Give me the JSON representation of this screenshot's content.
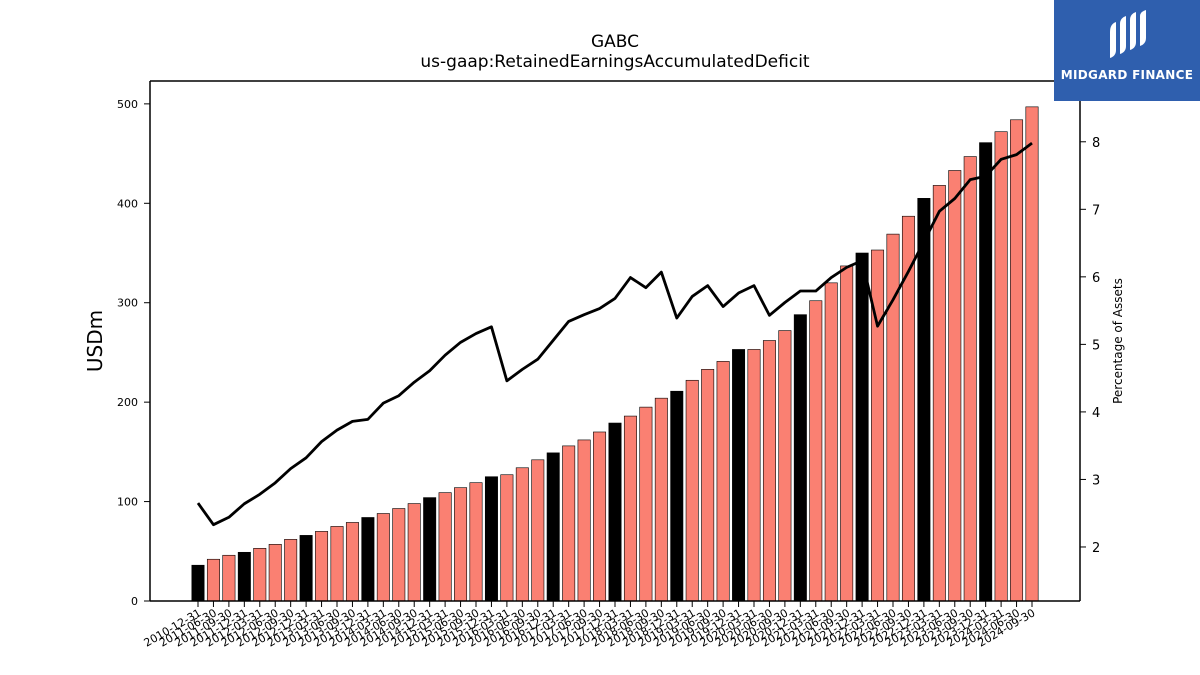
{
  "header": {
    "title": "GABC",
    "subtitle": "us-gaap:RetainedEarningsAccumulatedDeficit"
  },
  "logo": {
    "text": "MIDGARD FINANCE",
    "bg_color": "#2f5fae"
  },
  "chart_data": {
    "type": "bar",
    "title": "GABC",
    "subtitle": "us-gaap:RetainedEarningsAccumulatedDeficit",
    "ylabel": "USDm",
    "y2label": "Percentage of Assets",
    "ylim": [
      0,
      523
    ],
    "y2lim": [
      1.2,
      8.9
    ],
    "yticks": [
      0,
      100,
      200,
      300,
      400,
      500
    ],
    "y2ticks": [
      2,
      3,
      4,
      5,
      6,
      7,
      8
    ],
    "grid": false,
    "colors": {
      "annual": "#000000",
      "quarter": "#fa8072",
      "line": "#000000"
    },
    "categories": [
      "2010-12-31",
      "2011-06-30",
      "2011-09-30",
      "2011-12-31",
      "2012-03-31",
      "2012-06-30",
      "2012-09-30",
      "2012-12-31",
      "2013-03-31",
      "2013-06-30",
      "2013-09-30",
      "2013-12-31",
      "2014-03-31",
      "2014-06-30",
      "2014-09-30",
      "2014-12-31",
      "2015-03-31",
      "2015-06-30",
      "2015-09-30",
      "2015-12-31",
      "2016-03-31",
      "2016-06-30",
      "2016-09-30",
      "2016-12-31",
      "2017-03-31",
      "2017-06-30",
      "2017-09-30",
      "2017-12-31",
      "2018-03-31",
      "2018-06-30",
      "2018-09-30",
      "2018-12-31",
      "2019-03-31",
      "2019-06-30",
      "2019-09-30",
      "2019-12-31",
      "2020-03-31",
      "2020-06-30",
      "2020-09-30",
      "2020-12-31",
      "2021-03-31",
      "2021-06-30",
      "2021-09-30",
      "2021-12-31",
      "2022-03-31",
      "2022-06-30",
      "2022-09-30",
      "2022-12-31",
      "2023-03-31",
      "2023-06-30",
      "2023-09-30",
      "2023-12-31",
      "2024-03-31",
      "2024-06-30",
      "2024-09-30"
    ],
    "series": [
      {
        "type": "bar",
        "values": [
          36,
          42,
          46,
          49,
          53,
          57,
          62,
          66,
          70,
          75,
          79,
          84,
          88,
          93,
          98,
          104,
          109,
          114,
          119,
          125,
          127,
          134,
          142,
          149,
          156,
          162,
          170,
          179,
          186,
          195,
          204,
          211,
          222,
          233,
          241,
          253,
          253,
          262,
          272,
          288,
          302,
          320,
          337,
          350,
          353,
          369,
          387,
          405,
          418,
          433,
          447,
          461,
          472,
          484,
          497
        ],
        "annual_flags": [
          1,
          0,
          0,
          1,
          0,
          0,
          0,
          1,
          0,
          0,
          0,
          1,
          0,
          0,
          0,
          1,
          0,
          0,
          0,
          1,
          0,
          0,
          0,
          1,
          0,
          0,
          0,
          1,
          0,
          0,
          0,
          1,
          0,
          0,
          0,
          1,
          0,
          0,
          0,
          1,
          0,
          0,
          0,
          1,
          0,
          0,
          0,
          1,
          0,
          0,
          0,
          1,
          0,
          0,
          0
        ]
      },
      {
        "type": "line",
        "axis": "right",
        "values": [
          2.65,
          2.33,
          2.44,
          2.64,
          2.78,
          2.95,
          3.16,
          3.32,
          3.56,
          3.73,
          3.86,
          3.89,
          4.13,
          4.24,
          4.44,
          4.61,
          4.84,
          5.03,
          5.16,
          5.26,
          4.46,
          4.63,
          4.78,
          5.06,
          5.34,
          5.44,
          5.53,
          5.68,
          5.99,
          5.84,
          6.07,
          5.39,
          5.71,
          5.87,
          5.56,
          5.76,
          5.87,
          5.43,
          5.62,
          5.79,
          5.79,
          5.99,
          6.14,
          6.24,
          5.27,
          5.66,
          6.08,
          6.52,
          6.97,
          7.16,
          7.44,
          7.49,
          7.74,
          7.81,
          7.98
        ]
      }
    ]
  }
}
